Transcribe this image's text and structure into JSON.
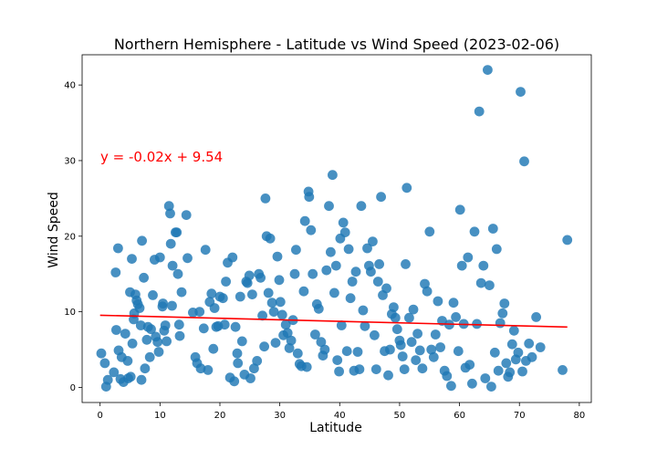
{
  "chart_data": {
    "type": "scatter",
    "title": "Northern Hemisphere - Latitude vs Wind Speed (2023-02-06)",
    "xlabel": "Latitude",
    "ylabel": "Wind Speed",
    "xlim": [
      -3,
      82
    ],
    "ylim": [
      -2,
      44
    ],
    "xticks": [
      0,
      10,
      20,
      30,
      40,
      50,
      60,
      70,
      80
    ],
    "yticks": [
      0,
      10,
      20,
      30,
      40
    ],
    "grid": false,
    "point_color": "#1f77b4",
    "regression": {
      "equation_text": "y = -0.02x + 9.54",
      "slope": -0.02,
      "intercept": 9.54,
      "x_range": [
        0,
        78
      ],
      "color": "#ff0000"
    },
    "points": [
      [
        0.2,
        4.5
      ],
      [
        0.8,
        3.2
      ],
      [
        1.0,
        0.1
      ],
      [
        1.3,
        1.0
      ],
      [
        2.3,
        2.0
      ],
      [
        2.6,
        15.2
      ],
      [
        2.7,
        7.6
      ],
      [
        3.0,
        18.4
      ],
      [
        3.1,
        4.9
      ],
      [
        3.4,
        1.1
      ],
      [
        3.6,
        4.0
      ],
      [
        3.9,
        0.7
      ],
      [
        4.2,
        7.1
      ],
      [
        4.6,
        3.5
      ],
      [
        4.7,
        1.2
      ],
      [
        5.0,
        12.6
      ],
      [
        5.1,
        1.4
      ],
      [
        5.3,
        17.0
      ],
      [
        5.4,
        5.8
      ],
      [
        5.6,
        9.0
      ],
      [
        5.7,
        9.8
      ],
      [
        5.9,
        12.3
      ],
      [
        6.1,
        11.5
      ],
      [
        6.3,
        11.0
      ],
      [
        6.6,
        10.5
      ],
      [
        6.8,
        8.2
      ],
      [
        6.9,
        1.0
      ],
      [
        7.0,
        19.4
      ],
      [
        7.3,
        14.5
      ],
      [
        7.5,
        2.5
      ],
      [
        7.8,
        6.3
      ],
      [
        8.0,
        8.0
      ],
      [
        8.3,
        4.0
      ],
      [
        8.5,
        7.7
      ],
      [
        8.8,
        12.2
      ],
      [
        9.1,
        16.9
      ],
      [
        9.3,
        6.7
      ],
      [
        9.6,
        6.0
      ],
      [
        9.8,
        4.7
      ],
      [
        10.0,
        17.2
      ],
      [
        10.4,
        10.7
      ],
      [
        10.5,
        11.1
      ],
      [
        10.7,
        7.5
      ],
      [
        10.9,
        8.2
      ],
      [
        11.1,
        6.1
      ],
      [
        11.5,
        24.0
      ],
      [
        11.7,
        23.0
      ],
      [
        11.8,
        19.0
      ],
      [
        12.0,
        10.8
      ],
      [
        12.1,
        16.1
      ],
      [
        12.6,
        20.5
      ],
      [
        12.8,
        20.5
      ],
      [
        13.0,
        15.0
      ],
      [
        13.2,
        8.3
      ],
      [
        13.3,
        6.8
      ],
      [
        13.6,
        12.6
      ],
      [
        14.4,
        22.8
      ],
      [
        14.6,
        17.1
      ],
      [
        15.5,
        9.9
      ],
      [
        15.9,
        4.0
      ],
      [
        16.2,
        3.2
      ],
      [
        16.6,
        10.0
      ],
      [
        16.8,
        2.5
      ],
      [
        17.3,
        7.8
      ],
      [
        17.6,
        18.2
      ],
      [
        18.0,
        2.3
      ],
      [
        18.3,
        11.3
      ],
      [
        18.6,
        12.4
      ],
      [
        18.9,
        5.1
      ],
      [
        19.1,
        10.5
      ],
      [
        19.4,
        8.0
      ],
      [
        19.7,
        8.1
      ],
      [
        20.0,
        12.0
      ],
      [
        20.5,
        11.8
      ],
      [
        20.8,
        8.3
      ],
      [
        21.0,
        14.0
      ],
      [
        21.3,
        16.5
      ],
      [
        21.7,
        1.3
      ],
      [
        22.1,
        17.2
      ],
      [
        22.4,
        0.8
      ],
      [
        22.6,
        8.0
      ],
      [
        22.9,
        4.5
      ],
      [
        23.0,
        3.2
      ],
      [
        23.4,
        12.0
      ],
      [
        23.7,
        6.1
      ],
      [
        24.1,
        1.7
      ],
      [
        24.4,
        14.0
      ],
      [
        24.6,
        13.8
      ],
      [
        24.9,
        14.8
      ],
      [
        25.1,
        1.2
      ],
      [
        25.4,
        12.3
      ],
      [
        25.7,
        2.5
      ],
      [
        26.2,
        3.5
      ],
      [
        26.5,
        15.0
      ],
      [
        26.8,
        14.5
      ],
      [
        27.1,
        9.5
      ],
      [
        27.4,
        5.4
      ],
      [
        27.6,
        25.0
      ],
      [
        27.8,
        20.0
      ],
      [
        28.1,
        12.5
      ],
      [
        28.4,
        19.7
      ],
      [
        28.7,
        11.2
      ],
      [
        29.0,
        10.0
      ],
      [
        29.3,
        5.9
      ],
      [
        29.6,
        17.3
      ],
      [
        29.9,
        14.2
      ],
      [
        30.1,
        11.3
      ],
      [
        30.4,
        9.6
      ],
      [
        30.6,
        6.9
      ],
      [
        31.0,
        8.3
      ],
      [
        31.3,
        7.2
      ],
      [
        31.6,
        5.2
      ],
      [
        31.9,
        6.2
      ],
      [
        32.2,
        8.9
      ],
      [
        32.5,
        15.0
      ],
      [
        32.7,
        18.2
      ],
      [
        33.0,
        4.5
      ],
      [
        33.3,
        3.1
      ],
      [
        33.6,
        2.8
      ],
      [
        34.0,
        12.7
      ],
      [
        34.2,
        22.0
      ],
      [
        34.5,
        2.7
      ],
      [
        34.8,
        25.9
      ],
      [
        34.9,
        25.2
      ],
      [
        35.2,
        20.8
      ],
      [
        35.5,
        15.0
      ],
      [
        35.9,
        7.0
      ],
      [
        36.2,
        11.0
      ],
      [
        36.5,
        10.4
      ],
      [
        36.9,
        6.0
      ],
      [
        37.2,
        4.2
      ],
      [
        37.5,
        5.0
      ],
      [
        37.8,
        15.5
      ],
      [
        38.2,
        24.0
      ],
      [
        38.5,
        17.9
      ],
      [
        38.8,
        28.1
      ],
      [
        39.1,
        12.5
      ],
      [
        39.4,
        16.1
      ],
      [
        39.6,
        3.6
      ],
      [
        39.9,
        2.1
      ],
      [
        40.1,
        19.7
      ],
      [
        40.3,
        8.2
      ],
      [
        40.6,
        21.8
      ],
      [
        40.9,
        20.5
      ],
      [
        41.2,
        4.8
      ],
      [
        41.5,
        18.3
      ],
      [
        41.8,
        11.8
      ],
      [
        42.1,
        14.0
      ],
      [
        42.4,
        2.2
      ],
      [
        42.7,
        15.3
      ],
      [
        43.0,
        4.7
      ],
      [
        43.3,
        2.4
      ],
      [
        43.6,
        24.0
      ],
      [
        43.9,
        10.2
      ],
      [
        44.2,
        8.1
      ],
      [
        44.6,
        18.4
      ],
      [
        44.9,
        16.1
      ],
      [
        45.2,
        15.3
      ],
      [
        45.5,
        19.3
      ],
      [
        45.8,
        6.9
      ],
      [
        46.1,
        2.4
      ],
      [
        46.4,
        14.0
      ],
      [
        46.6,
        16.3
      ],
      [
        46.9,
        25.2
      ],
      [
        47.2,
        12.2
      ],
      [
        47.5,
        4.8
      ],
      [
        47.8,
        13.1
      ],
      [
        48.1,
        1.6
      ],
      [
        48.4,
        5.0
      ],
      [
        48.7,
        9.7
      ],
      [
        49.0,
        10.6
      ],
      [
        49.3,
        9.2
      ],
      [
        49.6,
        7.7
      ],
      [
        50.0,
        6.2
      ],
      [
        50.2,
        5.6
      ],
      [
        50.5,
        4.1
      ],
      [
        50.8,
        2.4
      ],
      [
        51.0,
        16.3
      ],
      [
        51.2,
        26.4
      ],
      [
        51.6,
        9.2
      ],
      [
        52.0,
        6.0
      ],
      [
        52.3,
        10.3
      ],
      [
        52.7,
        3.6
      ],
      [
        53.0,
        7.1
      ],
      [
        53.4,
        4.9
      ],
      [
        53.8,
        2.5
      ],
      [
        54.2,
        13.7
      ],
      [
        54.6,
        12.7
      ],
      [
        55.0,
        20.6
      ],
      [
        55.3,
        5.0
      ],
      [
        55.7,
        4.0
      ],
      [
        56.0,
        7.0
      ],
      [
        56.4,
        11.4
      ],
      [
        56.8,
        5.3
      ],
      [
        57.1,
        8.8
      ],
      [
        57.5,
        2.2
      ],
      [
        57.9,
        1.5
      ],
      [
        58.3,
        8.3
      ],
      [
        58.6,
        0.2
      ],
      [
        59.0,
        11.2
      ],
      [
        59.4,
        9.3
      ],
      [
        59.8,
        4.8
      ],
      [
        60.1,
        23.5
      ],
      [
        60.4,
        16.1
      ],
      [
        60.7,
        8.4
      ],
      [
        61.0,
        2.6
      ],
      [
        61.4,
        17.2
      ],
      [
        61.7,
        3.0
      ],
      [
        62.1,
        0.5
      ],
      [
        62.5,
        20.6
      ],
      [
        62.9,
        8.4
      ],
      [
        63.3,
        36.5
      ],
      [
        63.6,
        13.8
      ],
      [
        64.0,
        16.1
      ],
      [
        64.3,
        1.2
      ],
      [
        64.7,
        42.0
      ],
      [
        65.0,
        13.5
      ],
      [
        65.3,
        0.1
      ],
      [
        65.6,
        21.0
      ],
      [
        65.9,
        4.6
      ],
      [
        66.2,
        18.3
      ],
      [
        66.5,
        2.2
      ],
      [
        66.8,
        8.5
      ],
      [
        67.2,
        9.8
      ],
      [
        67.5,
        11.1
      ],
      [
        67.8,
        3.2
      ],
      [
        68.1,
        1.4
      ],
      [
        68.4,
        2.0
      ],
      [
        68.8,
        5.7
      ],
      [
        69.1,
        7.5
      ],
      [
        69.4,
        3.7
      ],
      [
        69.8,
        4.6
      ],
      [
        70.2,
        39.1
      ],
      [
        70.5,
        2.1
      ],
      [
        70.8,
        29.9
      ],
      [
        71.1,
        3.5
      ],
      [
        71.6,
        5.8
      ],
      [
        72.1,
        4.0
      ],
      [
        72.8,
        9.3
      ],
      [
        73.5,
        5.3
      ],
      [
        77.2,
        2.3
      ],
      [
        78.0,
        19.5
      ]
    ]
  }
}
